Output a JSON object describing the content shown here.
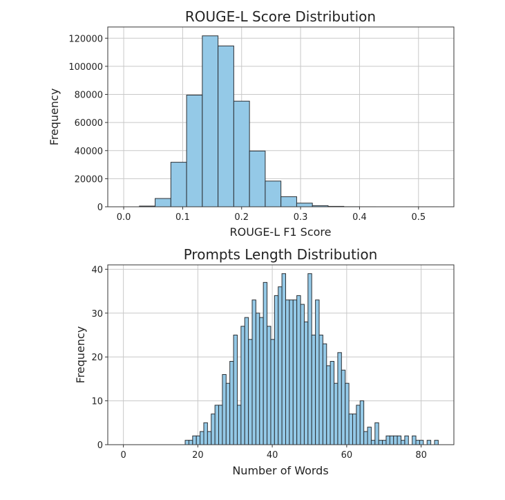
{
  "colors": {
    "bar_fill": "#94c9e7",
    "bar_edge": "#2b2f33",
    "grid": "#c8c8c8",
    "axes": "#333333",
    "background": "#ffffff"
  },
  "chart_data": [
    {
      "type": "bar",
      "title": "ROUGE-L Score Distribution",
      "xlabel": "ROUGE-L F1 Score",
      "ylabel": "Frequency",
      "grid": true,
      "xlim": [
        -0.027,
        0.56
      ],
      "ylim": [
        0,
        128000
      ],
      "xticks": [
        0.0,
        0.1,
        0.2,
        0.3,
        0.4,
        0.5
      ],
      "xtick_labels": [
        "0.0",
        "0.1",
        "0.2",
        "0.3",
        "0.4",
        "0.5"
      ],
      "yticks": [
        0,
        20000,
        40000,
        60000,
        80000,
        100000,
        120000
      ],
      "ytick_labels": [
        "0",
        "20000",
        "40000",
        "60000",
        "80000",
        "100000",
        "120000"
      ],
      "bin_start": 0.0,
      "bin_width": 0.02667,
      "categories": [
        "0.000",
        "0.027",
        "0.053",
        "0.080",
        "0.107",
        "0.133",
        "0.160",
        "0.187",
        "0.213",
        "0.240",
        "0.267",
        "0.293",
        "0.320",
        "0.347",
        "0.373",
        "0.400",
        "0.427",
        "0.453",
        "0.480",
        "0.507"
      ],
      "values": [
        0,
        500,
        5900,
        31700,
        79500,
        121700,
        114500,
        75200,
        39700,
        18300,
        7200,
        2600,
        800,
        300,
        50,
        20,
        10,
        5,
        5,
        5
      ]
    },
    {
      "type": "bar",
      "title": "Prompts Length Distribution",
      "xlabel": "Number of Words",
      "ylabel": "Frequency",
      "grid": true,
      "xlim": [
        -4.2,
        88.8
      ],
      "ylim": [
        0,
        41
      ],
      "xticks": [
        0,
        20,
        40,
        60,
        80
      ],
      "xtick_labels": [
        "0",
        "20",
        "40",
        "60",
        "80"
      ],
      "yticks": [
        0,
        10,
        20,
        30,
        40
      ],
      "ytick_labels": [
        "0",
        "10",
        "20",
        "30",
        "40"
      ],
      "bin_start": 16.6,
      "bin_width": 1.0,
      "categories": [
        17,
        18,
        19,
        20,
        21,
        22,
        23,
        24,
        25,
        26,
        27,
        28,
        29,
        30,
        31,
        32,
        33,
        34,
        35,
        36,
        37,
        38,
        39,
        40,
        41,
        42,
        43,
        44,
        45,
        46,
        47,
        48,
        49,
        50,
        51,
        52,
        53,
        54,
        55,
        56,
        57,
        58,
        59,
        60,
        61,
        62,
        63,
        64,
        65,
        66,
        67,
        68,
        69,
        70,
        71,
        72,
        73,
        74,
        75,
        76,
        77,
        78,
        79,
        80,
        81,
        82,
        83,
        84
      ],
      "values": [
        1,
        1,
        2,
        2,
        3,
        5,
        3,
        7,
        9,
        9,
        16,
        14,
        19,
        25,
        9,
        27,
        29,
        24,
        33,
        30,
        29,
        37,
        27,
        24,
        34,
        36,
        39,
        33,
        33,
        33,
        34,
        32,
        28,
        39,
        25,
        33,
        25,
        23,
        18,
        19,
        14,
        21,
        17,
        14,
        7,
        7,
        9,
        10,
        3,
        4,
        1,
        5,
        1,
        1,
        2,
        2,
        2,
        2,
        1,
        2,
        0,
        2,
        1,
        1,
        0,
        1,
        0,
        1
      ]
    }
  ]
}
